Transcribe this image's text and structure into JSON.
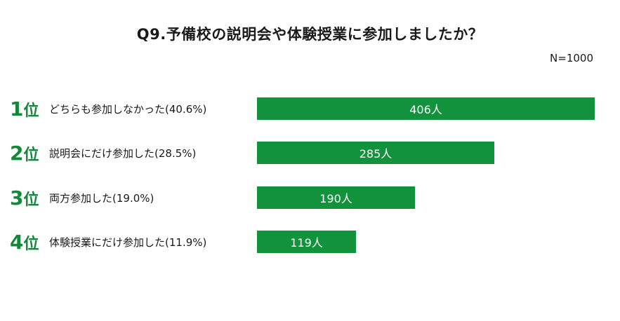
{
  "chart_data": {
    "type": "bar",
    "orientation": "horizontal",
    "title": "Q9.予備校の説明会や体験授業に参加しましたか？",
    "sample_note": "N=1000",
    "colors": {
      "bar": "#13923d",
      "rank": "#13883a"
    },
    "xlim": [
      0,
      406
    ],
    "rows": [
      {
        "rank_num": "1",
        "rank_unit": "位",
        "label": "どちらも参加しなかった(40.6%)",
        "value": 406,
        "value_label": "406人"
      },
      {
        "rank_num": "2",
        "rank_unit": "位",
        "label": "説明会にだけ参加した(28.5%)",
        "value": 285,
        "value_label": "285人"
      },
      {
        "rank_num": "3",
        "rank_unit": "位",
        "label": "両方参加した(19.0%)",
        "value": 190,
        "value_label": "190人"
      },
      {
        "rank_num": "4",
        "rank_unit": "位",
        "label": "体験授業にだけ参加した(11.9%)",
        "value": 119,
        "value_label": "119人"
      }
    ]
  }
}
